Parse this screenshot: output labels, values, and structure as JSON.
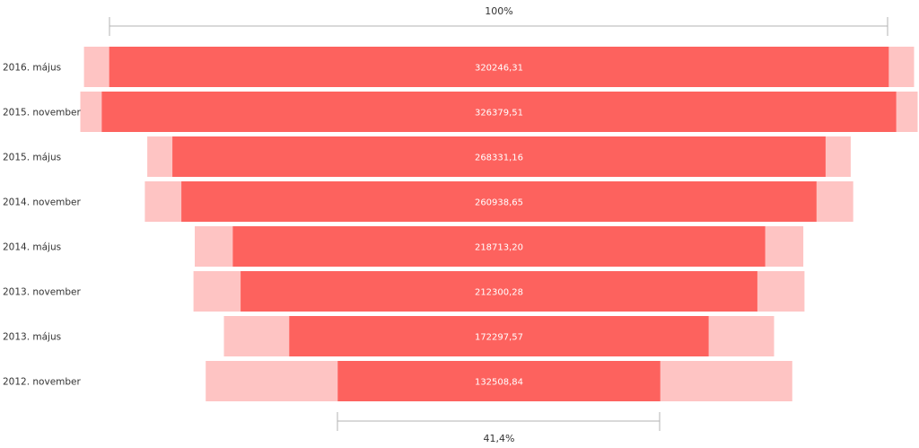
{
  "chart_data": {
    "type": "bar",
    "subtype": "funnel",
    "categories": [
      "2016. május",
      "2015. november",
      "2015. május",
      "2014. november",
      "2014. május",
      "2013. november",
      "2013. május",
      "2012. november"
    ],
    "series": [
      {
        "values": [
          320246.31,
          326379.51,
          268331.16,
          260938.65,
          218713.2,
          212300.28,
          172297.57,
          132508.84
        ]
      },
      {
        "values": [
          341000,
          344000,
          289000,
          291000,
          250000,
          251000,
          226000,
          241000
        ]
      }
    ],
    "value_labels": [
      "320246,31",
      "326379,51",
      "268331,16",
      "260938,65",
      "218713,20",
      "212300,28",
      "172297,57",
      "132508,84"
    ],
    "top_annotation": "100%",
    "bottom_annotation": "41,4%",
    "colors": {
      "bar": "#fd625e",
      "highlight": "#fec4c3",
      "bracket": "#b3b3b3",
      "label": "#333333",
      "value_text": "#ffffff"
    }
  }
}
